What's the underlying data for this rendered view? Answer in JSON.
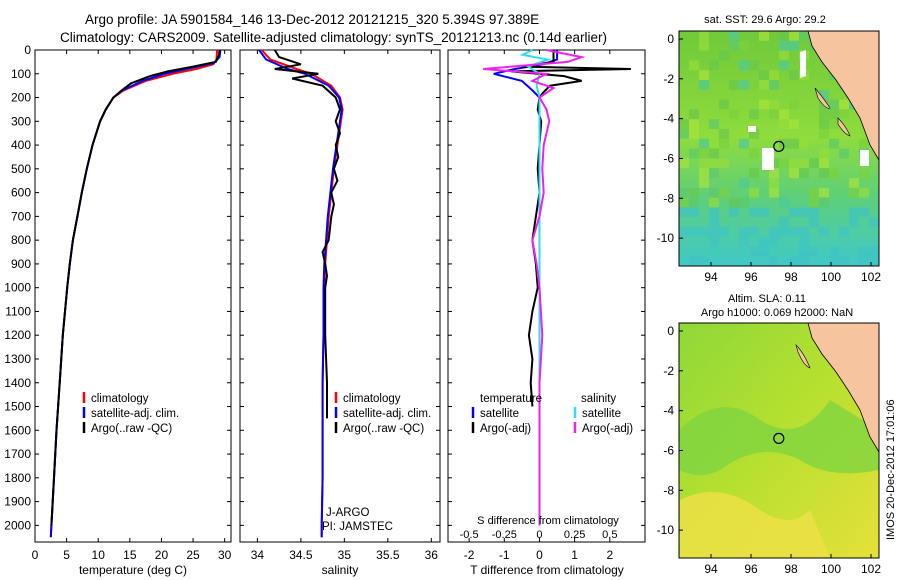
{
  "title": {
    "line1": "Argo profile: JA 5901584_146 13-Dec-2012 20121215_320 5.394S 97.389E",
    "line2": "Climatology: CARS2009. Satellite-adjusted climatology: synTS_20121213.nc (0.14d earlier)"
  },
  "colors": {
    "climatology": "#ff0000",
    "satellite": "#0000ff",
    "argo": "#000000",
    "sat_diff_t": "#0000ff",
    "sat_diff_s": "#33ddee",
    "argo_diff_s": "#ee22ee",
    "land": "#f6c49e",
    "ocean_green": "#7ed43c"
  },
  "credit": "IMOS 20-Dec-2012 17:01:06",
  "float_info": {
    "program": "J-ARGO",
    "pi": "PI: JAMSTEC"
  },
  "chart_data": [
    {
      "type": "line",
      "id": "temperature",
      "xlabel": "temperature (deg C)",
      "ylabel": "depth",
      "xlim": [
        0,
        31
      ],
      "ylim": [
        2070,
        0
      ],
      "xticks": [
        0,
        5,
        10,
        15,
        20,
        25,
        30
      ],
      "yticks": [
        0,
        100,
        200,
        300,
        400,
        500,
        600,
        700,
        800,
        900,
        1000,
        1100,
        1200,
        1300,
        1400,
        1500,
        1600,
        1700,
        1800,
        1900,
        2000
      ],
      "legend": [
        "climatology",
        "satellite-adj. clim.",
        "Argo(..raw -QC)"
      ],
      "series": [
        {
          "name": "climatology",
          "depth": [
            0,
            40,
            60,
            80,
            100,
            130,
            170,
            200,
            250,
            300,
            400,
            500,
            600,
            700,
            800,
            900,
            1000,
            1200,
            1400,
            1600,
            1800,
            2000,
            2050
          ],
          "values": [
            28.8,
            28.7,
            28.2,
            25.5,
            21.8,
            17.5,
            14.0,
            12.4,
            11.2,
            10.3,
            9.1,
            8.2,
            7.4,
            6.7,
            6.0,
            5.5,
            5.1,
            4.4,
            3.9,
            3.4,
            3.0,
            2.6,
            2.5
          ]
        },
        {
          "name": "satellite-adj. clim.",
          "depth": [
            0,
            30,
            55,
            75,
            100,
            130,
            170,
            200,
            250,
            300,
            400,
            500,
            600,
            700,
            800,
            900,
            1000,
            1200,
            1400,
            1600,
            1800,
            2000,
            2050
          ],
          "values": [
            29.3,
            29.2,
            28.3,
            24.8,
            20.5,
            17.0,
            13.8,
            12.4,
            11.2,
            10.3,
            9.1,
            8.2,
            7.4,
            6.7,
            6.0,
            5.5,
            5.1,
            4.4,
            3.9,
            3.4,
            3.0,
            2.6,
            2.5
          ]
        },
        {
          "name": "Argo(..raw -QC)",
          "depth": [
            0,
            20,
            50,
            70,
            90,
            110,
            140,
            170,
            200,
            250,
            300,
            400,
            500,
            600,
            700,
            800,
            900,
            1000,
            1200,
            1400,
            1600,
            1800,
            2000
          ],
          "values": [
            29.2,
            29.1,
            28.6,
            25.0,
            21.0,
            18.2,
            15.2,
            13.7,
            12.4,
            11.2,
            10.3,
            9.1,
            8.2,
            7.4,
            6.7,
            6.0,
            5.5,
            5.1,
            4.4,
            3.9,
            3.4,
            3.0,
            2.6
          ]
        }
      ]
    },
    {
      "type": "line",
      "id": "salinity",
      "xlabel": "salinity",
      "ylabel": "",
      "xlim": [
        33.8,
        36.1
      ],
      "ylim": [
        2070,
        0
      ],
      "xticks": [
        34,
        34.5,
        35,
        35.5,
        36
      ],
      "legend": [
        "climatology",
        "satellite-adj. clim.",
        "Argo(..raw -QC)"
      ],
      "series": [
        {
          "name": "climatology",
          "depth": [
            0,
            40,
            80,
            100,
            150,
            200,
            250,
            300,
            400,
            500,
            600,
            700,
            800,
            900,
            1000,
            1200,
            1400,
            1600,
            1800,
            2000,
            2050
          ],
          "values": [
            34.05,
            34.15,
            34.45,
            34.62,
            34.85,
            34.95,
            34.98,
            34.96,
            34.92,
            34.88,
            34.85,
            34.82,
            34.8,
            34.78,
            34.77,
            34.76,
            34.75,
            34.75,
            34.75,
            34.74,
            34.74
          ]
        },
        {
          "name": "satellite-adj. clim.",
          "depth": [
            0,
            40,
            80,
            100,
            150,
            200,
            250,
            300,
            400,
            500,
            600,
            700,
            800,
            900,
            1000,
            1200,
            1400,
            1600,
            1800,
            2000,
            2050
          ],
          "values": [
            34.02,
            34.1,
            34.35,
            34.55,
            34.82,
            34.94,
            34.97,
            34.95,
            34.91,
            34.87,
            34.84,
            34.81,
            34.79,
            34.77,
            34.76,
            34.76,
            34.75,
            34.75,
            34.75,
            34.74,
            34.74
          ]
        },
        {
          "name": "Argo(..raw -QC)",
          "depth": [
            0,
            30,
            60,
            80,
            100,
            120,
            150,
            200,
            250,
            300,
            350,
            400,
            450,
            500,
            550,
            600,
            650,
            700,
            800,
            850,
            900,
            950,
            1000,
            1100,
            1200,
            1300,
            1400,
            1500,
            1550
          ],
          "values": [
            34.2,
            34.25,
            34.5,
            34.2,
            34.7,
            34.4,
            34.75,
            34.9,
            34.95,
            34.9,
            34.95,
            34.9,
            34.93,
            34.88,
            34.92,
            34.85,
            34.88,
            34.85,
            34.82,
            34.75,
            34.78,
            34.8,
            34.78,
            34.78,
            34.78,
            34.79,
            34.8,
            34.8,
            34.8
          ]
        }
      ]
    },
    {
      "type": "line",
      "id": "differences",
      "xlabel": "T difference from climatology",
      "xlabel_top": "S difference from climatology",
      "xlim": [
        -2.6,
        3.0
      ],
      "ylim": [
        2070,
        0
      ],
      "xticks": [
        -2,
        -1,
        0,
        1,
        2
      ],
      "s_xticks": [
        -0.5,
        -0.25,
        0,
        0.25,
        0.5
      ],
      "legend": {
        "temperature_header": "temperature",
        "salinity_header": "salinity",
        "entries": [
          "satellite",
          "Argo(-adj)",
          "satellite",
          "Argo(-adj)"
        ]
      },
      "series": [
        {
          "name": "T satellite",
          "depth": [
            0,
            40,
            60,
            80,
            100,
            130,
            170,
            200,
            300,
            500,
            1000,
            2000
          ],
          "values": [
            0.5,
            0.5,
            0.1,
            -0.7,
            -1.3,
            -0.5,
            -0.2,
            0.0,
            0.0,
            0.0,
            0.0,
            0.0
          ]
        },
        {
          "name": "T Argo(-adj)",
          "depth": [
            0,
            20,
            50,
            70,
            80,
            90,
            110,
            130,
            150,
            180,
            200,
            250,
            300,
            400,
            500,
            600,
            700,
            800,
            900,
            1000,
            1100,
            1200,
            1300,
            1400,
            1500
          ],
          "values": [
            0.4,
            0.4,
            0.4,
            -0.5,
            2.6,
            -0.8,
            0.7,
            1.2,
            0.3,
            0.1,
            0.0,
            -0.05,
            0.05,
            0.0,
            -0.05,
            0.0,
            -0.1,
            -0.2,
            -0.1,
            -0.05,
            -0.2,
            -0.3,
            -0.2,
            -0.25,
            -0.2
          ]
        },
        {
          "name": "S satellite",
          "depth": [
            0,
            20,
            40,
            70,
            100,
            150,
            200,
            300,
            500,
            800,
            1200,
            1600,
            2000
          ],
          "values": [
            -0.05,
            -0.12,
            0.06,
            -0.08,
            0.0,
            -0.02,
            0.0,
            0.0,
            0.0,
            0.0,
            0.0,
            0.0,
            0.0
          ]
        },
        {
          "name": "S Argo(-adj)",
          "depth": [
            0,
            30,
            50,
            80,
            100,
            130,
            160,
            200,
            250,
            300,
            400,
            500,
            600,
            700,
            800,
            900,
            1000,
            1200,
            1400,
            1600,
            1800,
            2000
          ],
          "values": [
            0.05,
            0.3,
            0.2,
            -0.4,
            0.05,
            -0.05,
            0.1,
            0.0,
            0.05,
            0.07,
            0.03,
            0.02,
            0.03,
            0.0,
            -0.05,
            -0.02,
            0.0,
            0.02,
            0.0,
            0.0,
            0.0,
            0.0
          ]
        }
      ]
    },
    {
      "type": "heatmap",
      "id": "sst-map",
      "title": "sat. SST: 29.6 Argo: 29.2",
      "xlim": [
        92.4,
        102.4
      ],
      "ylim": [
        -11.4,
        0.4
      ],
      "xticks": [
        94,
        96,
        98,
        100,
        102
      ],
      "yticks": [
        0,
        -2,
        -4,
        -6,
        -8,
        -10
      ],
      "marker": {
        "lon": 97.389,
        "lat": -5.394
      }
    },
    {
      "type": "heatmap",
      "id": "sla-map",
      "title": "Altim. SLA: 0.11",
      "subtitle": "Argo h1000: 0.069 h2000: NaN",
      "xlim": [
        92.4,
        102.4
      ],
      "ylim": [
        -11.4,
        0.4
      ],
      "xticks": [
        94,
        96,
        98,
        100,
        102
      ],
      "yticks": [
        0,
        -2,
        -4,
        -6,
        -8,
        -10
      ],
      "marker": {
        "lon": 97.389,
        "lat": -5.394
      }
    }
  ]
}
